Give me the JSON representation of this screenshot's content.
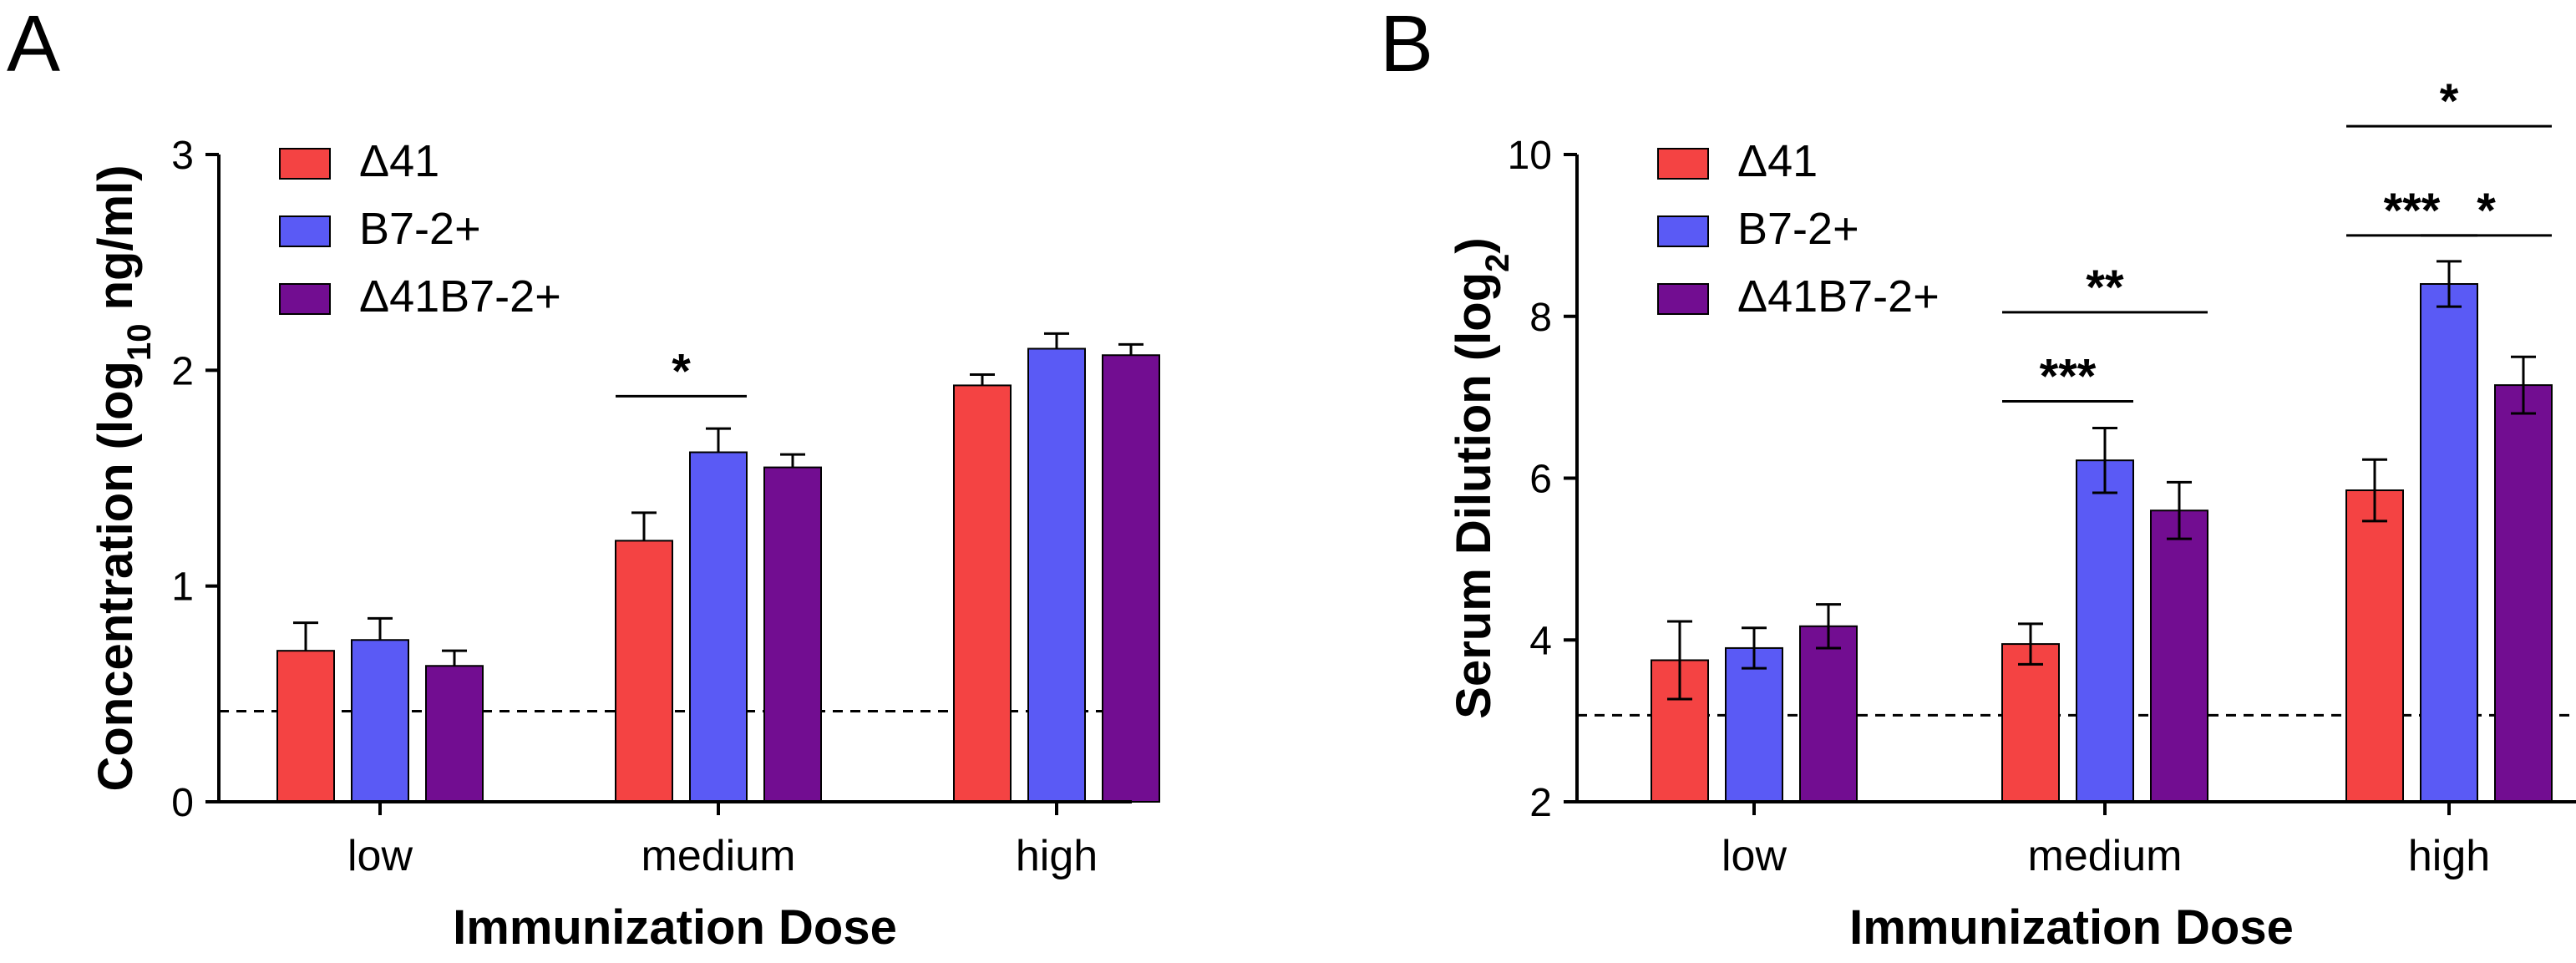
{
  "panels": [
    {
      "letter": "A",
      "chart_data": {
        "type": "bar",
        "title": "",
        "xlabel": "Immunization Dose",
        "ylabel_main": "Concentration (log",
        "ylabel_sub": "10",
        "ylabel_tail": " ng/ml)",
        "categories": [
          "low",
          "medium",
          "high"
        ],
        "ylim": [
          0,
          3
        ],
        "yticks": [
          0,
          1,
          2,
          3
        ],
        "tick_labels": [
          "0",
          "1",
          "2",
          "3"
        ],
        "dashed_line": 0.42,
        "series": [
          {
            "name": "Δ41",
            "color": "#f44343",
            "values": [
              0.7,
              1.21,
              1.93
            ],
            "errors": [
              0.13,
              0.13,
              0.05
            ]
          },
          {
            "name": "B7-2+",
            "color": "#5a5af5",
            "values": [
              0.75,
              1.62,
              2.1
            ],
            "errors": [
              0.1,
              0.11,
              0.07
            ]
          },
          {
            "name": "Δ41B7-2+",
            "color": "#720d91",
            "values": [
              0.63,
              1.55,
              2.07
            ],
            "errors": [
              0.07,
              0.06,
              0.05
            ]
          }
        ],
        "significance": [
          {
            "category": 1,
            "from_series": 0,
            "to_series": 1,
            "y": 1.88,
            "label": "*"
          }
        ]
      }
    },
    {
      "letter": "B",
      "chart_data": {
        "type": "bar",
        "title": "",
        "xlabel": "Immunization Dose",
        "ylabel_main": "Serum Dilution (log",
        "ylabel_sub": "2",
        "ylabel_tail": ")",
        "categories": [
          "low",
          "medium",
          "high"
        ],
        "ylim": [
          2,
          10
        ],
        "yticks": [
          2,
          4,
          6,
          8,
          10
        ],
        "tick_labels": [
          "2",
          "4",
          "6",
          "8",
          "10"
        ],
        "dashed_line": 3.07,
        "series": [
          {
            "name": "Δ41",
            "color": "#f44343",
            "values": [
              3.75,
              3.95,
              5.85
            ],
            "errors": [
              0.48,
              0.25,
              0.38
            ]
          },
          {
            "name": "B7-2+",
            "color": "#5a5af5",
            "values": [
              3.9,
              6.22,
              8.4
            ],
            "errors": [
              0.25,
              0.4,
              0.28
            ]
          },
          {
            "name": "Δ41B7-2+",
            "color": "#720d91",
            "values": [
              4.17,
              5.6,
              7.15
            ],
            "errors": [
              0.27,
              0.35,
              0.35
            ]
          }
        ],
        "significance": [
          {
            "category": 1,
            "from_series": 0,
            "to_series": 1,
            "y": 6.95,
            "label": "***"
          },
          {
            "category": 1,
            "from_series": 0,
            "to_series": 2,
            "y": 8.05,
            "label": "**"
          },
          {
            "category": 2,
            "from_series": 0,
            "to_series": 1,
            "y": 9.0,
            "label": "***"
          },
          {
            "category": 2,
            "from_series": 1,
            "to_series": 2,
            "y": 9.0,
            "label": "*"
          },
          {
            "category": 2,
            "from_series": 0,
            "to_series": 2,
            "y": 10.35,
            "label": "*"
          }
        ]
      }
    }
  ]
}
